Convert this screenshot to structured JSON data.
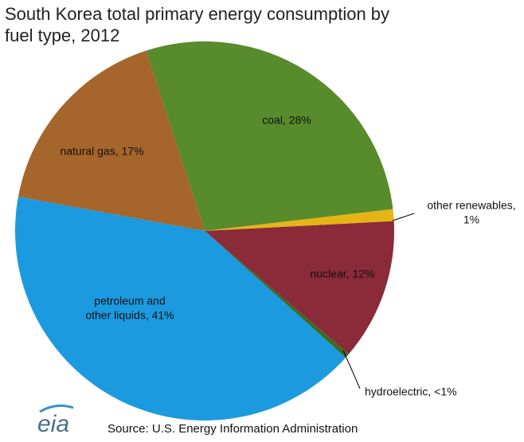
{
  "chart_data": {
    "type": "pie",
    "title": "South Korea total primary energy consumption by fuel type, 2012",
    "categories": [
      "coal",
      "other renewables",
      "nuclear",
      "hydroelectric",
      "petroleum and other liquids",
      "natural gas"
    ],
    "values": [
      28,
      1,
      12,
      0.4,
      41,
      17
    ],
    "value_labels": [
      [
        "coal, 28%"
      ],
      [
        "other renewables,",
        "1%"
      ],
      [
        "nuclear, 12%"
      ],
      [
        "hydroelectric, <1%"
      ],
      [
        "petroleum and",
        "other liquids, 41%"
      ],
      [
        "natural gas, 17%"
      ]
    ],
    "colors": [
      "#588b2c",
      "#e5b516",
      "#8b2a38",
      "#3d6b22",
      "#1b9ae0",
      "#a6652a"
    ],
    "source": "Source: U.S. Energy Information Administration",
    "logo": "eia"
  }
}
